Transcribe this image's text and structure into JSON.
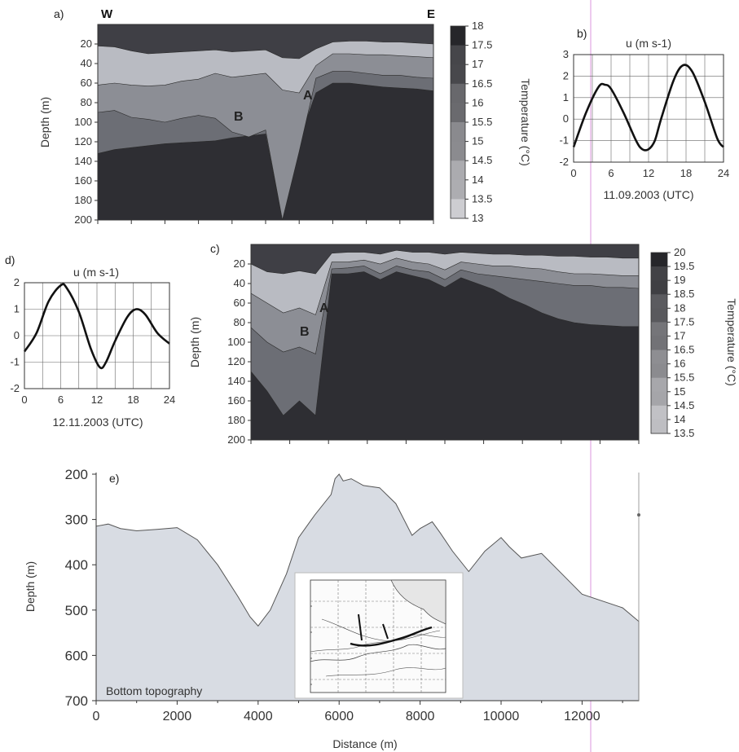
{
  "chart_data": [
    {
      "panel": "a)",
      "type": "heatmap",
      "orientation_labels": {
        "left": "W",
        "right": "E"
      },
      "ylabel": "Depth (m)",
      "y_ticks": [
        20,
        40,
        60,
        80,
        100,
        120,
        140,
        160,
        180,
        200
      ],
      "ylim": [
        0,
        200
      ],
      "annotations": [
        "A",
        "B"
      ],
      "colorbar": {
        "label": "Temperature (°C)",
        "ticks": [
          "18",
          "17.5",
          "17",
          "16.5",
          "16",
          "15.5",
          "15",
          "14.5",
          "14",
          "13.5",
          "13"
        ],
        "range": [
          13,
          18
        ]
      },
      "layers_depth_m": {
        "columns": 21,
        "warm_base": [
          22,
          23,
          27,
          30,
          29,
          28,
          27,
          26,
          28,
          27,
          26,
          34,
          35,
          25,
          18,
          17,
          17,
          18,
          18,
          19,
          20
        ],
        "thermocline_base": [
          62,
          60,
          62,
          63,
          62,
          58,
          56,
          50,
          54,
          52,
          50,
          67,
          70,
          42,
          30,
          30,
          31,
          31,
          32,
          33,
          34
        ],
        "mid_base": [
          90,
          88,
          95,
          97,
          100,
          96,
          93,
          96,
          110,
          115,
          108,
          200,
          130,
          55,
          48,
          48,
          50,
          52,
          52,
          54,
          55
        ],
        "cold_top": [
          132,
          128,
          126,
          124,
          122,
          121,
          120,
          119,
          116,
          114,
          112,
          200,
          118,
          70,
          60,
          60,
          62,
          64,
          65,
          66,
          68
        ]
      }
    },
    {
      "panel": "b)",
      "type": "line",
      "title": "u (m s-1)",
      "xlabel": "11.09.2003 (UTC)",
      "x_ticks": [
        0,
        6,
        12,
        18,
        24
      ],
      "y_ticks": [
        3,
        2,
        1,
        0,
        -1,
        -2
      ],
      "xlim": [
        0,
        24
      ],
      "ylim": [
        -2,
        3
      ],
      "series": [
        {
          "x": [
            0,
            2,
            4,
            5,
            6,
            8,
            10,
            11,
            12,
            13,
            14,
            16,
            17.5,
            19,
            21,
            23,
            24
          ],
          "values": [
            -1.3,
            0.3,
            1.5,
            1.6,
            1.4,
            0.3,
            -1.0,
            -1.4,
            -1.4,
            -1.0,
            0.0,
            1.8,
            2.5,
            2.2,
            0.8,
            -0.9,
            -1.3
          ]
        }
      ]
    },
    {
      "panel": "c)",
      "type": "heatmap",
      "ylabel": "Depth (m)",
      "y_ticks": [
        20,
        40,
        60,
        80,
        100,
        120,
        140,
        160,
        180,
        200
      ],
      "ylim": [
        0,
        200
      ],
      "annotations": [
        "A",
        "B"
      ],
      "colorbar": {
        "label": "Temperature (°C)",
        "ticks": [
          "20",
          "19.5",
          "19",
          "18.5",
          "18",
          "17.5",
          "17",
          "16.5",
          "16",
          "15.5",
          "15",
          "14.5",
          "14",
          "13.5"
        ],
        "range": [
          13.5,
          20
        ]
      },
      "layers_depth_m": {
        "columns": 25,
        "warm_base": [
          20,
          28,
          30,
          27,
          30,
          9,
          8,
          8,
          10,
          6,
          8,
          8,
          10,
          8,
          9,
          10,
          10,
          11,
          11,
          12,
          12,
          13,
          13,
          14,
          14
        ],
        "thermocline_base": [
          50,
          60,
          70,
          65,
          72,
          18,
          18,
          16,
          20,
          14,
          18,
          20,
          26,
          18,
          20,
          22,
          22,
          24,
          25,
          28,
          30,
          30,
          31,
          32,
          32
        ],
        "mid_base": [
          85,
          100,
          110,
          105,
          112,
          25,
          24,
          22,
          30,
          22,
          26,
          28,
          36,
          26,
          30,
          32,
          34,
          36,
          38,
          40,
          42,
          42,
          44,
          44,
          45
        ],
        "cold_top": [
          130,
          150,
          175,
          160,
          175,
          30,
          30,
          28,
          36,
          28,
          32,
          36,
          44,
          34,
          40,
          46,
          55,
          62,
          70,
          76,
          80,
          82,
          83,
          84,
          84
        ]
      }
    },
    {
      "panel": "d)",
      "type": "line",
      "title": "u (m s-1)",
      "xlabel": "12.11.2003 (UTC)",
      "x_ticks": [
        0,
        6,
        12,
        18,
        24
      ],
      "y_ticks": [
        2,
        1,
        0,
        -1,
        -2
      ],
      "xlim": [
        0,
        24
      ],
      "ylim": [
        -2,
        2
      ],
      "series": [
        {
          "x": [
            0,
            2,
            4,
            6,
            7,
            9,
            11,
            12.5,
            13.5,
            15,
            17,
            18.5,
            20,
            22,
            24
          ],
          "values": [
            -0.6,
            0.1,
            1.3,
            1.9,
            1.8,
            0.9,
            -0.5,
            -1.2,
            -1.0,
            -0.2,
            0.7,
            1.0,
            0.8,
            0.1,
            -0.3
          ]
        }
      ]
    },
    {
      "panel": "e)",
      "type": "area",
      "title": "Bottom topography",
      "xlabel": "Distance (m)",
      "ylabel": "Depth (m)",
      "x_ticks": [
        0,
        2000,
        4000,
        6000,
        8000,
        10000,
        12000
      ],
      "y_ticks": [
        200,
        300,
        400,
        500,
        600,
        700
      ],
      "xlim": [
        0,
        13400
      ],
      "ylim": [
        200,
        700
      ],
      "y_inverted": true,
      "series": [
        {
          "x": [
            0,
            300,
            600,
            1000,
            1500,
            2000,
            2500,
            3000,
            3500,
            3800,
            4000,
            4300,
            4700,
            5000,
            5400,
            5800,
            5900,
            6000,
            6100,
            6300,
            6600,
            7000,
            7400,
            7800,
            8000,
            8300,
            8500,
            8800,
            9200,
            9600,
            10000,
            10200,
            10500,
            11000,
            11500,
            12000,
            12500,
            13000,
            13400
          ],
          "values": [
            315,
            310,
            320,
            325,
            322,
            318,
            345,
            400,
            470,
            515,
            535,
            500,
            420,
            340,
            290,
            245,
            210,
            200,
            215,
            210,
            225,
            230,
            265,
            335,
            320,
            305,
            330,
            370,
            415,
            370,
            340,
            360,
            385,
            375,
            420,
            465,
            480,
            495,
            525
          ]
        }
      ]
    }
  ]
}
